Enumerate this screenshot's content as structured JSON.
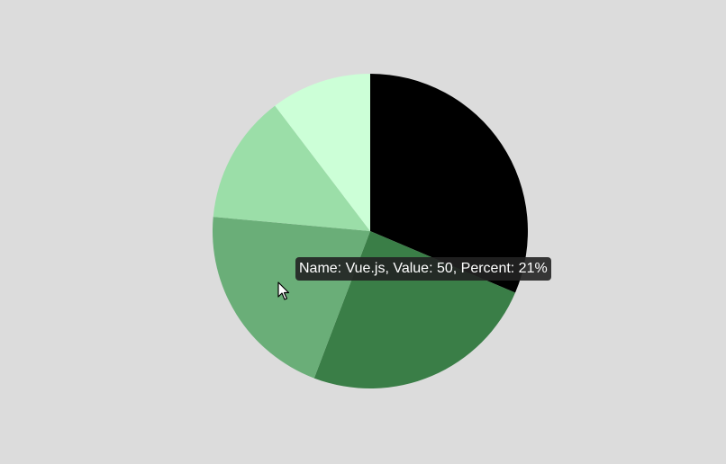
{
  "chart_data": {
    "type": "pie",
    "title": "",
    "slices": [
      {
        "value": 76,
        "color": "#000000"
      },
      {
        "value": 59,
        "color": "#3a7e47"
      },
      {
        "value": 50,
        "color": "#6aae78"
      },
      {
        "value": 32,
        "color": "#9bdea8"
      },
      {
        "value": 25,
        "color": "#ccffd7"
      }
    ],
    "start_angle_deg": 0,
    "direction": "clockwise"
  },
  "tooltip": {
    "text": "Name: Vue.js, Value: 50, Percent: 21%"
  },
  "colors": {
    "background": "#dcdcdc",
    "tooltip_bg": "#222222"
  }
}
